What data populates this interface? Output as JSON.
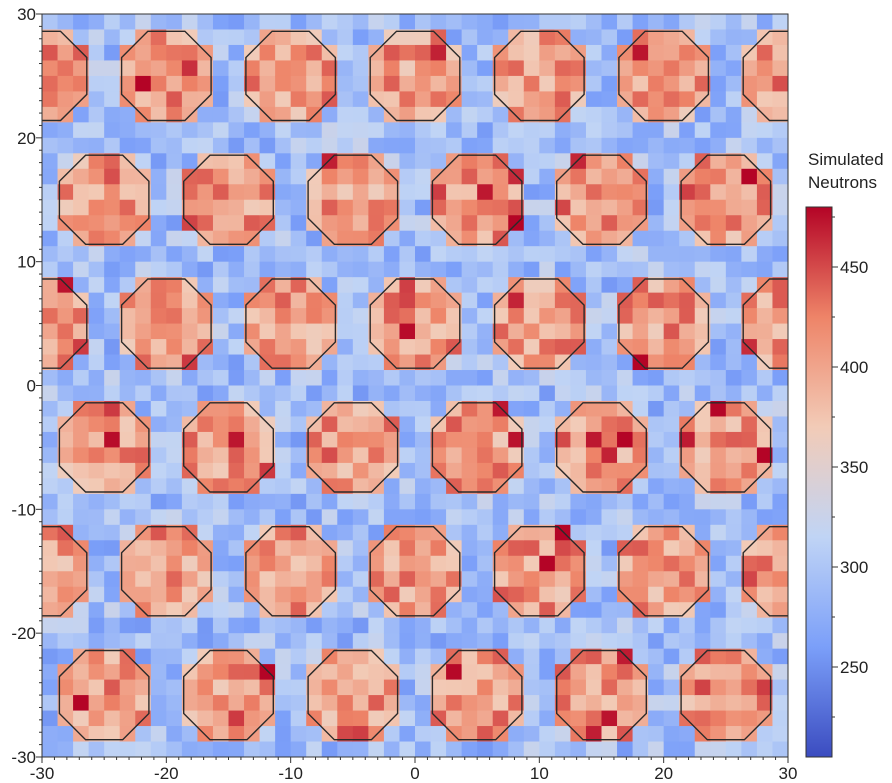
{
  "chart_data": {
    "type": "heatmap",
    "title": "",
    "xlabel": "",
    "ylabel": "",
    "xlim": [
      -30,
      30
    ],
    "ylim": [
      -30,
      30
    ],
    "grid": false,
    "x_ticks": [
      "-30",
      "-20",
      "-10",
      "0",
      "10",
      "20",
      "30"
    ],
    "y_ticks": [
      "30",
      "20",
      "10",
      "0",
      "-10",
      "-20",
      "-30"
    ],
    "colorbar": {
      "title_lines": [
        "Simulated",
        "Neutrons"
      ],
      "range": [
        205,
        480
      ],
      "ticks": [
        "450",
        "400",
        "350",
        "300",
        "250"
      ],
      "colormap": [
        "#3b4cc0",
        "#7b9ff9",
        "#c0d4f5",
        "#f2cbb7",
        "#ee8468",
        "#b40426"
      ]
    },
    "cells_per_axis": 48,
    "background_level": 290,
    "hotspot_level": 405,
    "hotspot_shape": "octagon",
    "hotspot_radius": 3.6,
    "hotspots_even_rows_x": [
      -30,
      -20,
      -10,
      0,
      10,
      20,
      30
    ],
    "hotspots_odd_rows_x": [
      -25,
      -15,
      -5,
      5,
      15,
      25
    ],
    "hotspot_rows": [
      {
        "y": 25,
        "x_set": "even"
      },
      {
        "y": 15,
        "x_set": "odd"
      },
      {
        "y": 5,
        "x_set": "even"
      },
      {
        "y": -5,
        "x_set": "odd"
      },
      {
        "y": -15,
        "x_set": "even"
      },
      {
        "y": -25,
        "x_set": "odd"
      }
    ]
  }
}
